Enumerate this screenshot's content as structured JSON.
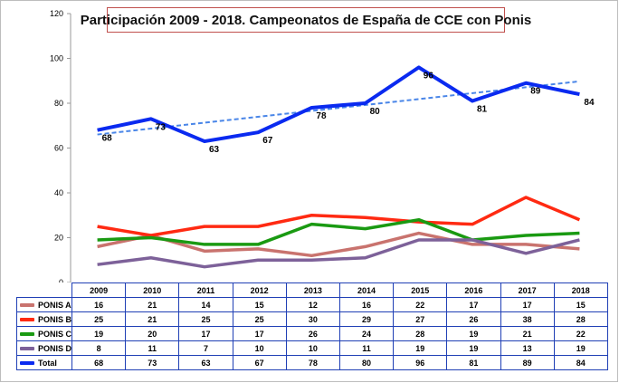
{
  "chart_data": {
    "type": "line",
    "title": "Participación 2009 - 2018. Campeonatos de España de CCE con Ponis",
    "categories": [
      "2009",
      "2010",
      "2011",
      "2012",
      "2013",
      "2014",
      "2015",
      "2016",
      "2017",
      "2018"
    ],
    "ylim": [
      0,
      120
    ],
    "yticks": [
      0,
      20,
      40,
      60,
      80,
      100,
      120
    ],
    "grid": false,
    "legend": "data-table",
    "series": [
      {
        "name": "PONIS A",
        "color": "#c9736e",
        "values": [
          16,
          21,
          14,
          15,
          12,
          16,
          22,
          17,
          17,
          15
        ]
      },
      {
        "name": "PONIS B",
        "color": "#ff2a12",
        "values": [
          25,
          21,
          25,
          25,
          30,
          29,
          27,
          26,
          38,
          28
        ]
      },
      {
        "name": "PONIS C",
        "color": "#1a9a12",
        "values": [
          19,
          20,
          17,
          17,
          26,
          24,
          28,
          19,
          21,
          22
        ]
      },
      {
        "name": "PONIS D",
        "color": "#7d6199",
        "values": [
          8,
          11,
          7,
          10,
          10,
          11,
          19,
          19,
          13,
          19
        ]
      },
      {
        "name": "Total",
        "color": "#0a2af0",
        "values": [
          68,
          73,
          63,
          67,
          78,
          80,
          96,
          81,
          89,
          84
        ]
      }
    ],
    "trendline": {
      "series": "Total",
      "color": "#4a86e8",
      "style": "dashed"
    }
  }
}
